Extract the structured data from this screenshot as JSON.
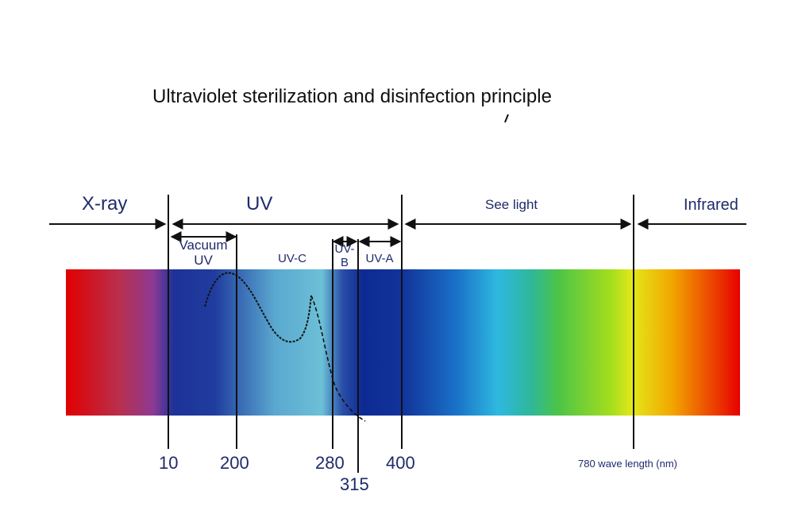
{
  "title": "Ultraviolet sterilization and disinfection principle",
  "regions": {
    "xray": "X-ray",
    "uv": "UV",
    "visible": "See light",
    "infrared": "Infrared"
  },
  "uv_bands": {
    "vacuum_uv_line1": "Vacuum",
    "vacuum_uv_line2": "UV",
    "uvc": "UV-C",
    "uvb_line1": "UV-",
    "uvb_line2": "B",
    "uva": "UV-A"
  },
  "wavelength_marks": {
    "m10": "10",
    "m200": "200",
    "m280": "280",
    "m315": "315",
    "m400": "400",
    "m780": "780 wave length (nm)"
  },
  "colors": {
    "label": "#1f2a6b",
    "line": "#111111",
    "spectrum": [
      "#e00000",
      "#a23a8c",
      "#1d2f9a",
      "#5cb6d4",
      "#0d2a93",
      "#2fb4e0",
      "#57c84a",
      "#d8e800",
      "#ee3000"
    ]
  }
}
